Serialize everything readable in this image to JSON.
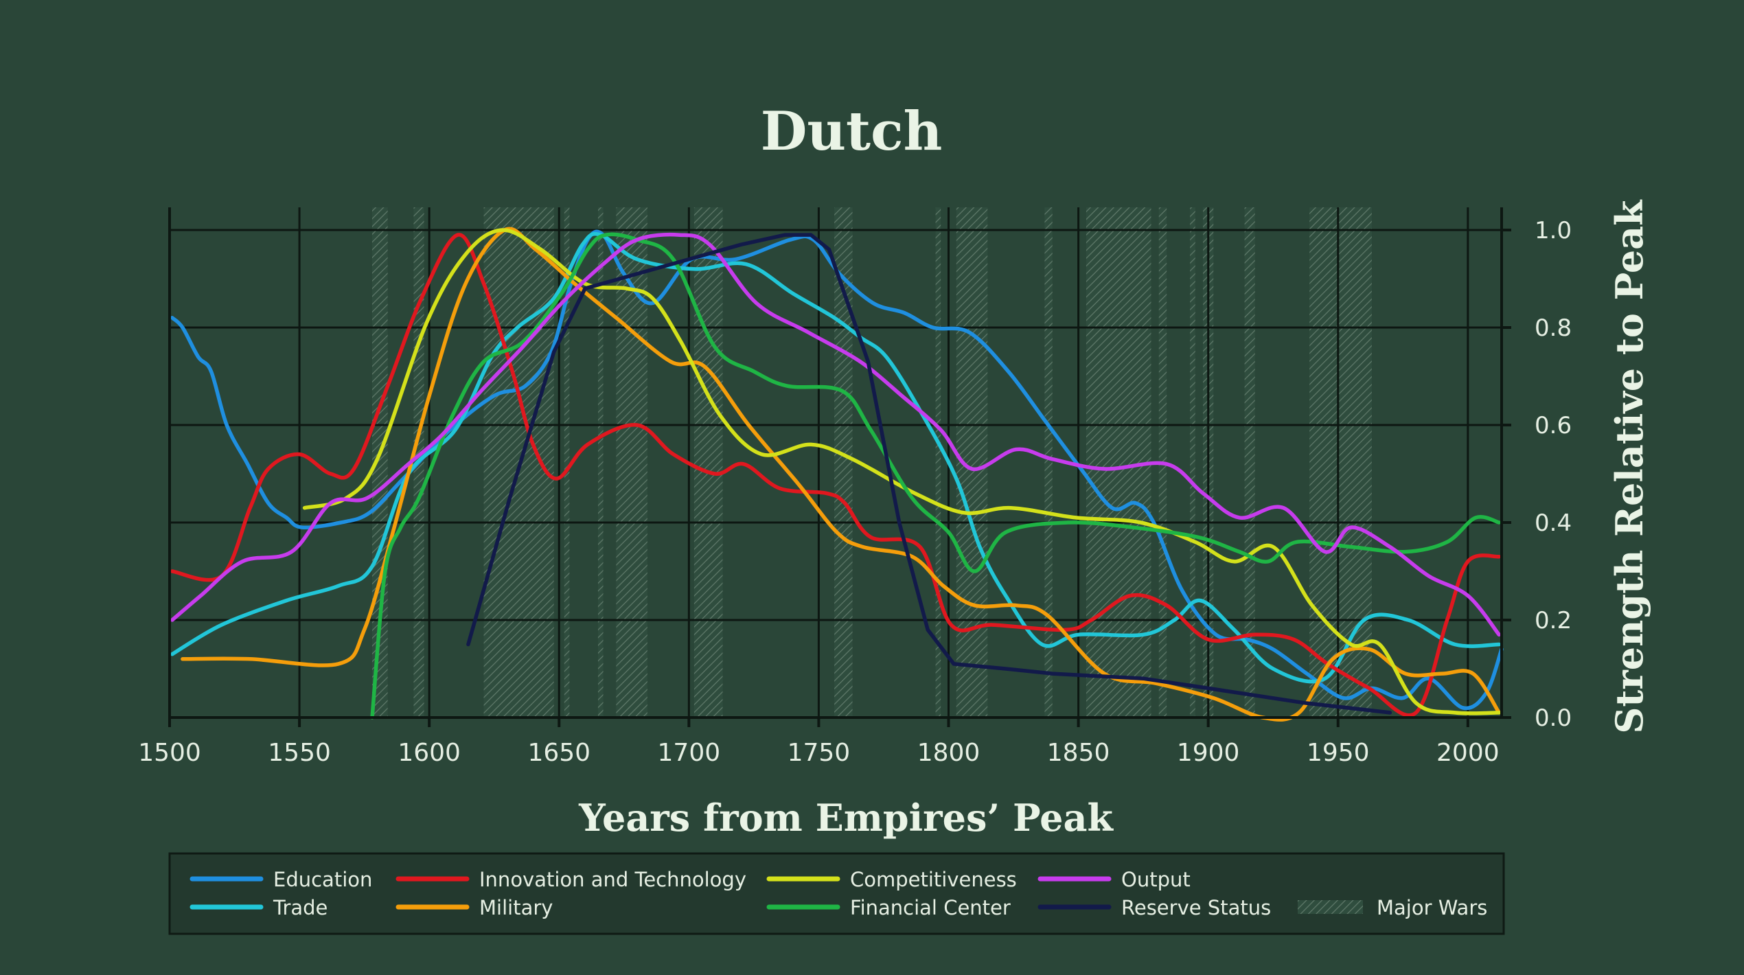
{
  "chart_data": {
    "type": "line",
    "title": "Dutch",
    "xlabel": "Years from Empires’ Peak",
    "ylabel": "Strength Relative to Peak",
    "xlim": [
      1500,
      2013
    ],
    "ylim": [
      0,
      1.0
    ],
    "xticks": [
      "1500",
      "1550",
      "1600",
      "1650",
      "1700",
      "1750",
      "1800",
      "1850",
      "1900",
      "1950",
      "2000"
    ],
    "yticks": [
      "0.0",
      "0.2",
      "0.4",
      "0.6",
      "0.8",
      "1.0"
    ],
    "grid": true,
    "legend_position": "bottom",
    "major_wars_label": "Major Wars",
    "major_wars": [
      [
        1578,
        1584
      ],
      [
        1594,
        1598
      ],
      [
        1621,
        1648
      ],
      [
        1652,
        1654
      ],
      [
        1665,
        1667
      ],
      [
        1672,
        1684
      ],
      [
        1702,
        1713
      ],
      [
        1756,
        1763
      ],
      [
        1795,
        1797
      ],
      [
        1803,
        1815
      ],
      [
        1837,
        1840
      ],
      [
        1853,
        1878
      ],
      [
        1881,
        1884
      ],
      [
        1893,
        1895
      ],
      [
        1898,
        1902
      ],
      [
        1914,
        1918
      ],
      [
        1939,
        1963
      ]
    ],
    "series": [
      {
        "name": "Education",
        "color": "#1f8fe0",
        "values": [
          [
            1501,
            0.82
          ],
          [
            1505,
            0.8
          ],
          [
            1511,
            0.74
          ],
          [
            1516,
            0.71
          ],
          [
            1522,
            0.6
          ],
          [
            1530,
            0.52
          ],
          [
            1538,
            0.44
          ],
          [
            1545,
            0.41
          ],
          [
            1551,
            0.39
          ],
          [
            1566,
            0.4
          ],
          [
            1577,
            0.42
          ],
          [
            1590,
            0.49
          ],
          [
            1608,
            0.59
          ],
          [
            1625,
            0.66
          ],
          [
            1637,
            0.68
          ],
          [
            1647,
            0.75
          ],
          [
            1654,
            0.88
          ],
          [
            1661,
            0.98
          ],
          [
            1667,
            0.99
          ],
          [
            1675,
            0.91
          ],
          [
            1686,
            0.85
          ],
          [
            1701,
            0.94
          ],
          [
            1718,
            0.94
          ],
          [
            1739,
            0.98
          ],
          [
            1748,
            0.98
          ],
          [
            1758,
            0.91
          ],
          [
            1771,
            0.85
          ],
          [
            1783,
            0.83
          ],
          [
            1794,
            0.8
          ],
          [
            1808,
            0.79
          ],
          [
            1823,
            0.71
          ],
          [
            1837,
            0.61
          ],
          [
            1851,
            0.51
          ],
          [
            1863,
            0.43
          ],
          [
            1872,
            0.44
          ],
          [
            1879,
            0.4
          ],
          [
            1890,
            0.26
          ],
          [
            1903,
            0.17
          ],
          [
            1915,
            0.16
          ],
          [
            1925,
            0.14
          ],
          [
            1938,
            0.09
          ],
          [
            1952,
            0.04
          ],
          [
            1963,
            0.06
          ],
          [
            1975,
            0.04
          ],
          [
            1985,
            0.08
          ],
          [
            1998,
            0.02
          ],
          [
            2007,
            0.05
          ],
          [
            2013,
            0.14
          ]
        ]
      },
      {
        "name": "Trade",
        "color": "#22c6d8",
        "values": [
          [
            1501,
            0.13
          ],
          [
            1520,
            0.19
          ],
          [
            1545,
            0.24
          ],
          [
            1565,
            0.27
          ],
          [
            1578,
            0.31
          ],
          [
            1592,
            0.5
          ],
          [
            1610,
            0.59
          ],
          [
            1624,
            0.74
          ],
          [
            1634,
            0.8
          ],
          [
            1648,
            0.86
          ],
          [
            1659,
            0.97
          ],
          [
            1666,
            0.99
          ],
          [
            1680,
            0.94
          ],
          [
            1702,
            0.92
          ],
          [
            1722,
            0.93
          ],
          [
            1740,
            0.87
          ],
          [
            1756,
            0.82
          ],
          [
            1766,
            0.78
          ],
          [
            1776,
            0.74
          ],
          [
            1789,
            0.63
          ],
          [
            1803,
            0.49
          ],
          [
            1812,
            0.35
          ],
          [
            1822,
            0.25
          ],
          [
            1836,
            0.15
          ],
          [
            1850,
            0.17
          ],
          [
            1875,
            0.17
          ],
          [
            1887,
            0.2
          ],
          [
            1897,
            0.24
          ],
          [
            1910,
            0.18
          ],
          [
            1925,
            0.1
          ],
          [
            1945,
            0.08
          ],
          [
            1960,
            0.2
          ],
          [
            1977,
            0.2
          ],
          [
            1995,
            0.15
          ],
          [
            2012,
            0.15
          ]
        ]
      },
      {
        "name": "Innovation and Technology",
        "color": "#e0181f",
        "values": [
          [
            1501,
            0.3
          ],
          [
            1520,
            0.29
          ],
          [
            1531,
            0.43
          ],
          [
            1538,
            0.51
          ],
          [
            1550,
            0.54
          ],
          [
            1562,
            0.5
          ],
          [
            1571,
            0.51
          ],
          [
            1584,
            0.68
          ],
          [
            1597,
            0.86
          ],
          [
            1611,
            0.99
          ],
          [
            1621,
            0.89
          ],
          [
            1632,
            0.71
          ],
          [
            1640,
            0.56
          ],
          [
            1649,
            0.49
          ],
          [
            1661,
            0.56
          ],
          [
            1680,
            0.6
          ],
          [
            1694,
            0.54
          ],
          [
            1710,
            0.5
          ],
          [
            1721,
            0.52
          ],
          [
            1735,
            0.47
          ],
          [
            1753,
            0.46
          ],
          [
            1760,
            0.44
          ],
          [
            1770,
            0.37
          ],
          [
            1789,
            0.35
          ],
          [
            1801,
            0.19
          ],
          [
            1817,
            0.19
          ],
          [
            1845,
            0.18
          ],
          [
            1855,
            0.2
          ],
          [
            1870,
            0.25
          ],
          [
            1884,
            0.23
          ],
          [
            1900,
            0.16
          ],
          [
            1918,
            0.17
          ],
          [
            1933,
            0.16
          ],
          [
            1946,
            0.11
          ],
          [
            1962,
            0.06
          ],
          [
            1980,
            0.01
          ],
          [
            1992,
            0.2
          ],
          [
            2000,
            0.32
          ],
          [
            2012,
            0.33
          ]
        ]
      },
      {
        "name": "Military",
        "color": "#f59e0b",
        "values": [
          [
            1505,
            0.12
          ],
          [
            1531,
            0.12
          ],
          [
            1565,
            0.11
          ],
          [
            1575,
            0.18
          ],
          [
            1586,
            0.38
          ],
          [
            1600,
            0.66
          ],
          [
            1614,
            0.89
          ],
          [
            1629,
            1.0
          ],
          [
            1641,
            0.96
          ],
          [
            1656,
            0.89
          ],
          [
            1672,
            0.82
          ],
          [
            1693,
            0.73
          ],
          [
            1706,
            0.72
          ],
          [
            1723,
            0.6
          ],
          [
            1742,
            0.48
          ],
          [
            1757,
            0.38
          ],
          [
            1767,
            0.35
          ],
          [
            1786,
            0.33
          ],
          [
            1798,
            0.27
          ],
          [
            1810,
            0.23
          ],
          [
            1826,
            0.23
          ],
          [
            1838,
            0.21
          ],
          [
            1860,
            0.09
          ],
          [
            1880,
            0.07
          ],
          [
            1902,
            0.04
          ],
          [
            1921,
            0.0
          ],
          [
            1935,
            0.01
          ],
          [
            1948,
            0.12
          ],
          [
            1962,
            0.14
          ],
          [
            1976,
            0.09
          ],
          [
            1990,
            0.09
          ],
          [
            2002,
            0.09
          ],
          [
            2012,
            0.01
          ]
        ]
      },
      {
        "name": "Competitiveness",
        "color": "#d4e11b",
        "values": [
          [
            1552,
            0.43
          ],
          [
            1568,
            0.45
          ],
          [
            1580,
            0.53
          ],
          [
            1599,
            0.81
          ],
          [
            1614,
            0.95
          ],
          [
            1628,
            1.0
          ],
          [
            1643,
            0.96
          ],
          [
            1660,
            0.89
          ],
          [
            1676,
            0.88
          ],
          [
            1686,
            0.86
          ],
          [
            1697,
            0.77
          ],
          [
            1712,
            0.62
          ],
          [
            1728,
            0.54
          ],
          [
            1747,
            0.56
          ],
          [
            1763,
            0.53
          ],
          [
            1787,
            0.46
          ],
          [
            1806,
            0.42
          ],
          [
            1824,
            0.43
          ],
          [
            1849,
            0.41
          ],
          [
            1874,
            0.4
          ],
          [
            1895,
            0.36
          ],
          [
            1910,
            0.32
          ],
          [
            1925,
            0.35
          ],
          [
            1940,
            0.23
          ],
          [
            1955,
            0.15
          ],
          [
            1966,
            0.15
          ],
          [
            1980,
            0.03
          ],
          [
            1995,
            0.01
          ],
          [
            2012,
            0.01
          ]
        ]
      },
      {
        "name": "Financial Center",
        "color": "#1fb545",
        "values": [
          [
            1578,
            0.0
          ],
          [
            1583,
            0.3
          ],
          [
            1589,
            0.39
          ],
          [
            1596,
            0.45
          ],
          [
            1609,
            0.62
          ],
          [
            1621,
            0.73
          ],
          [
            1636,
            0.77
          ],
          [
            1651,
            0.87
          ],
          [
            1661,
            0.96
          ],
          [
            1668,
            0.99
          ],
          [
            1680,
            0.98
          ],
          [
            1694,
            0.94
          ],
          [
            1710,
            0.76
          ],
          [
            1725,
            0.71
          ],
          [
            1738,
            0.68
          ],
          [
            1759,
            0.67
          ],
          [
            1770,
            0.59
          ],
          [
            1786,
            0.45
          ],
          [
            1800,
            0.38
          ],
          [
            1810,
            0.3
          ],
          [
            1822,
            0.38
          ],
          [
            1846,
            0.4
          ],
          [
            1871,
            0.39
          ],
          [
            1896,
            0.37
          ],
          [
            1912,
            0.34
          ],
          [
            1923,
            0.32
          ],
          [
            1934,
            0.36
          ],
          [
            1955,
            0.35
          ],
          [
            1976,
            0.34
          ],
          [
            1992,
            0.36
          ],
          [
            2003,
            0.41
          ],
          [
            2012,
            0.4
          ]
        ]
      },
      {
        "name": "Output",
        "color": "#c73ced",
        "values": [
          [
            1501,
            0.2
          ],
          [
            1512,
            0.25
          ],
          [
            1528,
            0.32
          ],
          [
            1547,
            0.34
          ],
          [
            1562,
            0.44
          ],
          [
            1576,
            0.45
          ],
          [
            1592,
            0.52
          ],
          [
            1605,
            0.58
          ],
          [
            1620,
            0.67
          ],
          [
            1636,
            0.76
          ],
          [
            1651,
            0.85
          ],
          [
            1667,
            0.93
          ],
          [
            1680,
            0.98
          ],
          [
            1696,
            0.99
          ],
          [
            1708,
            0.97
          ],
          [
            1726,
            0.85
          ],
          [
            1746,
            0.79
          ],
          [
            1766,
            0.73
          ],
          [
            1782,
            0.66
          ],
          [
            1797,
            0.59
          ],
          [
            1809,
            0.51
          ],
          [
            1826,
            0.55
          ],
          [
            1840,
            0.53
          ],
          [
            1860,
            0.51
          ],
          [
            1884,
            0.52
          ],
          [
            1898,
            0.46
          ],
          [
            1912,
            0.41
          ],
          [
            1929,
            0.43
          ],
          [
            1945,
            0.34
          ],
          [
            1955,
            0.39
          ],
          [
            1970,
            0.35
          ],
          [
            1985,
            0.29
          ],
          [
            2000,
            0.25
          ],
          [
            2012,
            0.17
          ]
        ]
      },
      {
        "name": "Reserve Status",
        "color": "#121a4a",
        "values": [
          [
            1615,
            0.15
          ],
          [
            1631,
            0.45
          ],
          [
            1648,
            0.75
          ],
          [
            1660,
            0.88
          ],
          [
            1680,
            0.91
          ],
          [
            1700,
            0.94
          ],
          [
            1720,
            0.97
          ],
          [
            1737,
            0.99
          ],
          [
            1747,
            0.99
          ],
          [
            1754,
            0.96
          ],
          [
            1769,
            0.73
          ],
          [
            1781,
            0.4
          ],
          [
            1792,
            0.18
          ],
          [
            1802,
            0.11
          ],
          [
            1822,
            0.1
          ],
          [
            1840,
            0.09
          ],
          [
            1875,
            0.08
          ],
          [
            1900,
            0.06
          ],
          [
            1937,
            0.03
          ],
          [
            1970,
            0.01
          ]
        ]
      }
    ]
  }
}
